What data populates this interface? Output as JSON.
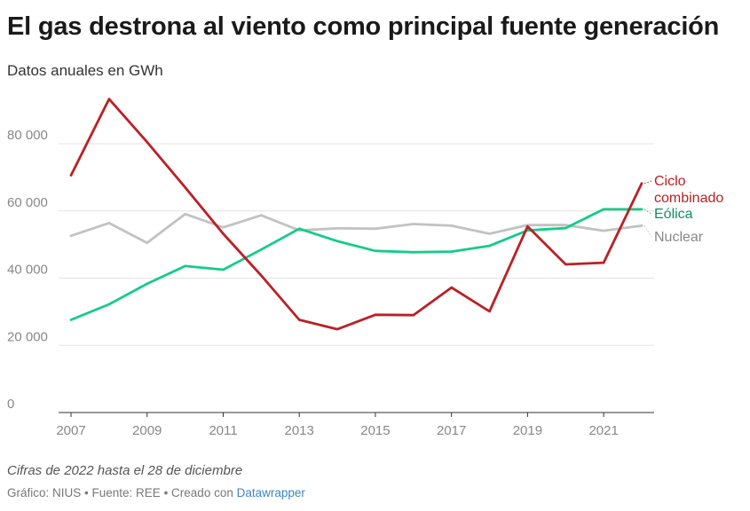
{
  "header": {
    "title": "El gas destrona al viento como principal fuente generación",
    "subtitle": "Datos anuales en GWh"
  },
  "notes": {
    "text": "Cifras de 2022 hasta el 28 de diciembre"
  },
  "footer": {
    "grafico": "Gráfico: NIUS",
    "sep1": " • ",
    "fuente": "Fuente: REE",
    "sep2": " • ",
    "creado": "Creado con ",
    "tool": "Datawrapper"
  },
  "chart_data": {
    "type": "line",
    "x": [
      2007,
      2008,
      2009,
      2010,
      2011,
      2012,
      2013,
      2014,
      2015,
      2016,
      2017,
      2018,
      2019,
      2020,
      2021,
      2022
    ],
    "xticks": [
      "2007",
      "2009",
      "2011",
      "2013",
      "2015",
      "2017",
      "2019",
      "2021"
    ],
    "xtick_values": [
      2007,
      2009,
      2011,
      2013,
      2015,
      2017,
      2019,
      2021
    ],
    "yticks": [
      "0",
      "20 000",
      "40 000",
      "60 000",
      "80 000"
    ],
    "ytick_values": [
      0,
      20000,
      40000,
      60000,
      80000
    ],
    "ylim": [
      0,
      95000
    ],
    "xlim": [
      2007,
      2022.3
    ],
    "grid": true,
    "series": [
      {
        "name": "Nuclear",
        "color": "#c2c2c2",
        "label_color": "#888888",
        "values": [
          52600,
          56400,
          50500,
          59100,
          55100,
          58700,
          54200,
          54800,
          54700,
          56100,
          55600,
          53200,
          55800,
          55800,
          54100,
          55600
        ]
      },
      {
        "name": "Eólica",
        "color": "#13cc89",
        "label_color": "#0f8f62",
        "values": [
          27600,
          32200,
          38300,
          43600,
          42500,
          48500,
          54700,
          51000,
          48100,
          47700,
          47900,
          49600,
          54200,
          54900,
          60500,
          60500
        ]
      },
      {
        "name": "Ciclo combinado",
        "label_lines": [
          "Ciclo",
          "combinado"
        ],
        "color": "#bb2026",
        "label_color": "#bb2026",
        "values": [
          70600,
          93300,
          80500,
          67000,
          53200,
          40800,
          27600,
          24800,
          29100,
          29000,
          37200,
          30100,
          55400,
          44100,
          44600,
          68200
        ]
      }
    ]
  }
}
